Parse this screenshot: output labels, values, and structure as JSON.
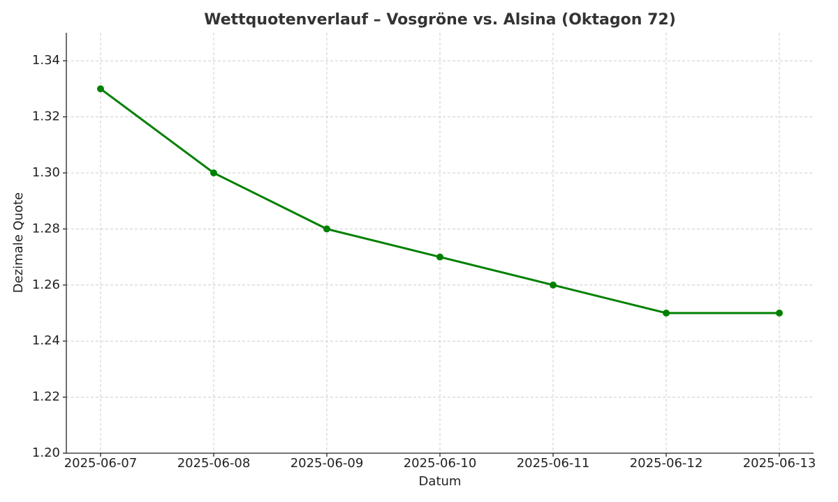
{
  "chart_data": {
    "type": "line",
    "title": "Wettquotenverlauf – Vosgröne vs. Alsina (Oktagon 72)",
    "x_label": "Datum",
    "y_label": "Dezimale Quote",
    "categories": [
      "2025-06-07",
      "2025-06-08",
      "2025-06-09",
      "2025-06-10",
      "2025-06-11",
      "2025-06-12",
      "2025-06-13"
    ],
    "values": [
      1.33,
      1.3,
      1.28,
      1.27,
      1.26,
      1.25,
      1.25
    ],
    "color": "#008000",
    "ylim": [
      1.2,
      1.35
    ],
    "yticks": [
      {
        "value": 1.2,
        "label": "1.20"
      },
      1.22,
      1.24,
      1.26,
      1.28,
      {
        "value": 1.3,
        "label": "1.30"
      },
      1.32,
      1.34
    ],
    "grid": true
  }
}
